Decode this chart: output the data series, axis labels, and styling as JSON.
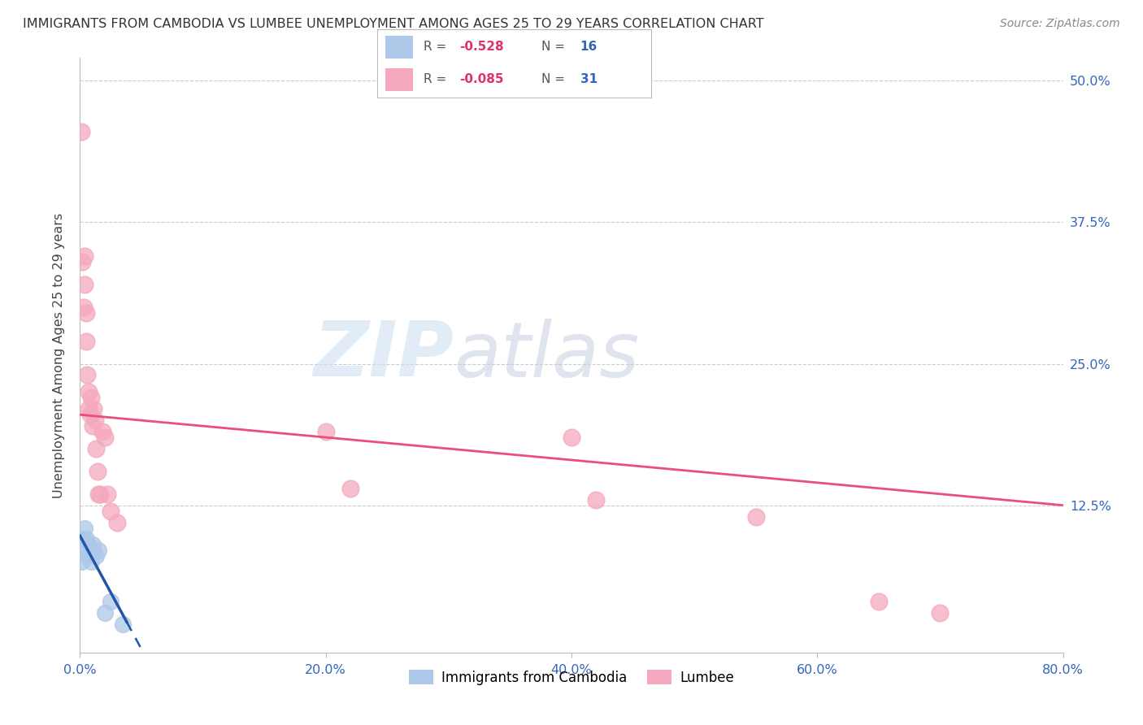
{
  "title": "IMMIGRANTS FROM CAMBODIA VS LUMBEE UNEMPLOYMENT AMONG AGES 25 TO 29 YEARS CORRELATION CHART",
  "source": "Source: ZipAtlas.com",
  "ylabel": "Unemployment Among Ages 25 to 29 years",
  "xlim": [
    0.0,
    0.8
  ],
  "ylim": [
    -0.005,
    0.52
  ],
  "ytick_vals": [
    0.0,
    0.125,
    0.25,
    0.375,
    0.5
  ],
  "ytick_labels_right": [
    "",
    "12.5%",
    "25.0%",
    "37.5%",
    "50.0%"
  ],
  "xtick_vals": [
    0.0,
    0.2,
    0.4,
    0.6,
    0.8
  ],
  "xtick_labels": [
    "0.0%",
    "20.0%",
    "40.0%",
    "60.0%",
    "80.0%"
  ],
  "cambodia_color": "#adc8e8",
  "lumbee_color": "#f5a8be",
  "trend_cambodia_color": "#2255aa",
  "trend_lumbee_color": "#e8507a",
  "background_color": "#ffffff",
  "grid_color": "#cccccc",
  "watermark_zip_color": "#c8dff0",
  "watermark_atlas_color": "#c0c8d8",
  "legend_R_cambodia": "-0.528",
  "legend_N_cambodia": "16",
  "legend_R_lumbee": "-0.085",
  "legend_N_lumbee": "31",
  "cambodia_x": [
    0.001,
    0.002,
    0.003,
    0.004,
    0.005,
    0.006,
    0.007,
    0.008,
    0.009,
    0.01,
    0.011,
    0.013,
    0.015,
    0.02,
    0.025,
    0.035
  ],
  "cambodia_y": [
    0.075,
    0.095,
    0.085,
    0.105,
    0.095,
    0.08,
    0.09,
    0.085,
    0.075,
    0.09,
    0.085,
    0.08,
    0.085,
    0.03,
    0.04,
    0.02
  ],
  "lumbee_x": [
    0.001,
    0.002,
    0.003,
    0.004,
    0.004,
    0.005,
    0.005,
    0.006,
    0.007,
    0.007,
    0.008,
    0.009,
    0.01,
    0.011,
    0.012,
    0.013,
    0.014,
    0.015,
    0.016,
    0.018,
    0.02,
    0.022,
    0.025,
    0.03,
    0.2,
    0.22,
    0.4,
    0.42,
    0.55,
    0.65,
    0.7
  ],
  "lumbee_y": [
    0.455,
    0.34,
    0.3,
    0.345,
    0.32,
    0.295,
    0.27,
    0.24,
    0.225,
    0.21,
    0.205,
    0.22,
    0.195,
    0.21,
    0.2,
    0.175,
    0.155,
    0.135,
    0.135,
    0.19,
    0.185,
    0.135,
    0.12,
    0.11,
    0.19,
    0.14,
    0.185,
    0.13,
    0.115,
    0.04,
    0.03
  ],
  "cam_trend_x0": 0.0,
  "cam_trend_x_solid_end": 0.038,
  "cam_trend_x_dash_end": 0.55,
  "cam_trend_y0": 0.098,
  "cam_trend_slope": -2.0,
  "lum_trend_x0": 0.0,
  "lum_trend_x1": 0.8,
  "lum_trend_y0": 0.205,
  "lum_trend_slope": -0.1
}
